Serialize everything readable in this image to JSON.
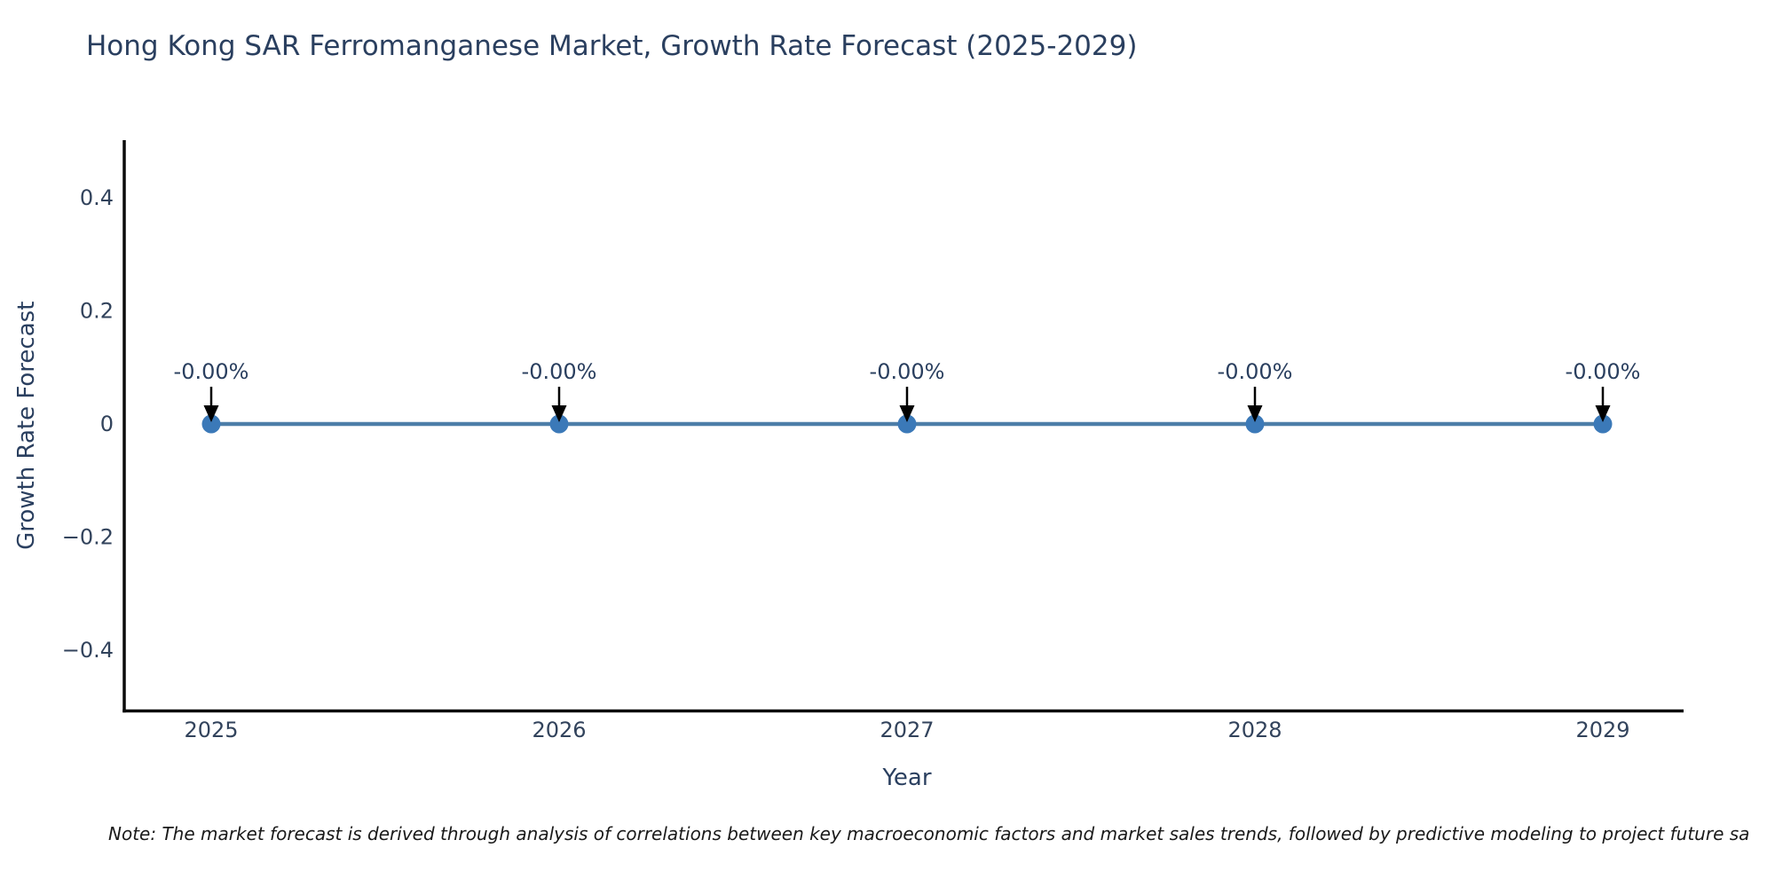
{
  "title": "Hong Kong SAR Ferromanganese Market, Growth Rate Forecast (2025-2029)",
  "note": "Note: The market forecast is derived through analysis of correlations between key macroeconomic factors and market sales trends, followed by predictive modeling to project future sa",
  "chart_data": {
    "type": "line",
    "title": "Hong Kong SAR Ferromanganese Market, Growth Rate Forecast (2025-2029)",
    "xlabel": "Year",
    "ylabel": "Growth Rate Forecast",
    "x": [
      2025,
      2026,
      2027,
      2028,
      2029
    ],
    "values": [
      0,
      0,
      0,
      0,
      0
    ],
    "point_labels": [
      "-0.00%",
      "-0.00%",
      "-0.00%",
      "-0.00%",
      "-0.00%"
    ],
    "x_tick_labels": [
      "2025",
      "2026",
      "2027",
      "2028",
      "2029"
    ],
    "y_ticks": [
      0.4,
      0.2,
      0,
      -0.2,
      -0.4
    ],
    "y_tick_labels": [
      "0.4",
      "0.2",
      "0",
      "−0.2",
      "−0.4"
    ],
    "ylim": [
      -0.5,
      0.5
    ],
    "grid": false,
    "legend": "none",
    "annotation_arrows": true,
    "colors": {
      "line": "#4d7ea8",
      "marker": "#3b79b8",
      "axis_line": "#0b0b0b",
      "arrow": "#000000",
      "text": "#2a3f5f",
      "tick_text": "#32435c"
    }
  }
}
